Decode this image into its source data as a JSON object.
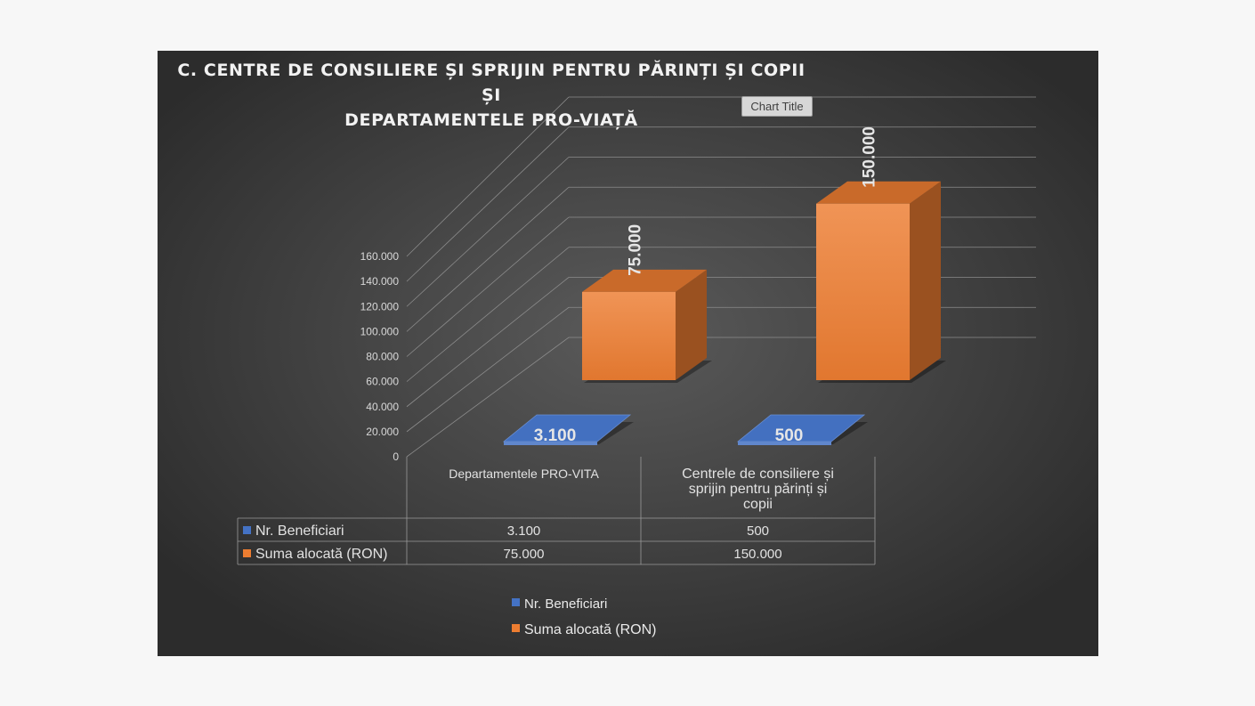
{
  "chart_data": {
    "type": "bar",
    "title": "C. CENTRE DE CONSILIERE ȘI SPRIJIN PENTRU PĂRINȚI ȘI COPII ȘI DEPARTAMENTELE PRO-VIAȚĂ",
    "title_lines": [
      "C. CENTRE DE CONSILIERE ȘI SPRIJIN PENTRU PĂRINȚI ȘI COPII ȘI",
      "DEPARTAMENTELE PRO-VIAȚĂ"
    ],
    "title_tag": "Chart Title",
    "style": "3d-clustered-column",
    "categories": [
      "Departamentele PRO-VITA",
      "Centrele de consiliere și sprijin pentru părinți și copii"
    ],
    "category_label_lines": [
      [
        "Departamentele PRO-VITA"
      ],
      [
        "Centrele de consiliere și",
        "sprijin pentru părinți și",
        "copii"
      ]
    ],
    "series": [
      {
        "name": "Nr. Beneficiari",
        "values": [
          3100,
          500
        ],
        "labels": [
          "3.100",
          "500"
        ],
        "color": "#4472c4"
      },
      {
        "name": "Suma alocată (RON)",
        "values": [
          75000,
          150000
        ],
        "labels": [
          "75.000",
          "150.000"
        ],
        "color": "#ed7d31"
      }
    ],
    "yticks": [
      "0",
      "20.000",
      "40.000",
      "60.000",
      "80.000",
      "100.000",
      "120.000",
      "140.000",
      "160.000"
    ],
    "ylim": [
      0,
      160000
    ],
    "grid": true,
    "data_table": true,
    "legend_position": "bottom",
    "colors": {
      "background_center": "#5a5a5a",
      "background_edge": "#2c2c2c",
      "text": "#e8e8e8",
      "gridline": "#8c8c8c"
    }
  }
}
